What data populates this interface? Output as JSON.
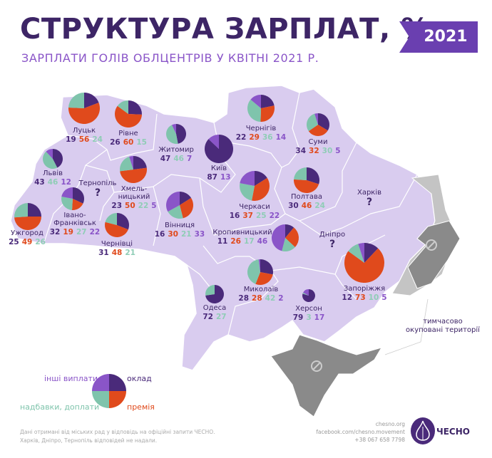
{
  "header": {
    "title": "СТРУКТУРА ЗАРПЛАТ, %",
    "subtitle": "ЗАРПЛАТИ ГОЛІВ ОБЛЦЕНТРІВ У КВІТНІ 2021 Р.",
    "year": "2021"
  },
  "colors": {
    "oklad": "#4a2a7a",
    "premia": "#e04a1c",
    "nadbavky": "#7fc4ac",
    "inshi": "#8a55c8",
    "map_fill": "#d9ccef",
    "occupied_light": "#c4c4c4",
    "occupied_dark": "#8a8a8a"
  },
  "cities": [
    {
      "name": "Луцьк",
      "values": {
        "oklad": 19,
        "premia": 56,
        "nadbavky": 24
      }
    },
    {
      "name": "Рівне",
      "values": {
        "oklad": 26,
        "premia": 60,
        "nadbavky": 15
      }
    },
    {
      "name": "Житомир",
      "values": {
        "oklad": 47,
        "nadbavky": 46,
        "inshi": 7
      }
    },
    {
      "name": "Київ",
      "values": {
        "oklad": 87,
        "inshi": 13
      }
    },
    {
      "name": "Чернігів",
      "values": {
        "oklad": 22,
        "premia": 29,
        "nadbavky": 36,
        "inshi": 14
      }
    },
    {
      "name": "Суми",
      "values": {
        "oklad": 34,
        "premia": 32,
        "nadbavky": 30,
        "inshi": 5
      }
    },
    {
      "name": "Львів",
      "values": {
        "oklad": 43,
        "nadbavky": 46,
        "inshi": 12
      }
    },
    {
      "name": "Тернопіль",
      "values": null,
      "missing": "?"
    },
    {
      "name": "Хмель-\nницький",
      "values": {
        "oklad": 23,
        "premia": 50,
        "nadbavky": 22,
        "inshi": 5
      }
    },
    {
      "name": "Черкаси",
      "values": {
        "oklad": 16,
        "premia": 37,
        "nadbavky": 25,
        "inshi": 22
      }
    },
    {
      "name": "Полтава",
      "values": {
        "oklad": 30,
        "premia": 46,
        "nadbavky": 24
      }
    },
    {
      "name": "Харків",
      "values": null,
      "missing": "?"
    },
    {
      "name": "Ужгород",
      "values": {
        "oklad": 25,
        "premia": 49,
        "nadbavky": 26
      }
    },
    {
      "name": "Івано-\nФранківськ",
      "values": {
        "oklad": 32,
        "premia": 19,
        "nadbavky": 27,
        "inshi": 22
      }
    },
    {
      "name": "Чернівці",
      "values": {
        "oklad": 31,
        "premia": 48,
        "nadbavky": 21
      }
    },
    {
      "name": "Вінниця",
      "values": {
        "oklad": 16,
        "premia": 30,
        "nadbavky": 21,
        "inshi": 33
      }
    },
    {
      "name": "Кропивницький",
      "values": {
        "oklad": 11,
        "premia": 26,
        "nadbavky": 17,
        "inshi": 46
      }
    },
    {
      "name": "Дніпро",
      "values": null,
      "missing": "?"
    },
    {
      "name": "Запоріжжя",
      "values": {
        "oklad": 12,
        "premia": 73,
        "nadbavky": 10,
        "inshi": 5
      }
    },
    {
      "name": "Миколаїв",
      "values": {
        "oklad": 28,
        "premia": 28,
        "nadbavky": 42,
        "inshi": 2
      }
    },
    {
      "name": "Одеса",
      "values": {
        "oklad": 72,
        "nadbavky": 27
      }
    },
    {
      "name": "Херсон",
      "values": {
        "oklad": 79,
        "nadbavky": 3,
        "inshi": 17
      }
    }
  ],
  "occupied_note": "тимчасово окуповані території",
  "legend": {
    "oklad": "оклад",
    "premia": "премія",
    "nadbavky": "надбавки, доплати",
    "inshi": "інші виплати"
  },
  "footnote": {
    "line1": "Дані отримані від міських рад у відповідь на офіційні запити ЧЕСНО.",
    "line2": "Харків, Дніпро, Тернопіль відповідей не надали."
  },
  "contacts": {
    "site": "chesno.org",
    "facebook": "facebook.com/chesno.movement",
    "phone": "+38 067 658 7798"
  },
  "logo": "ЧЕСНО"
}
